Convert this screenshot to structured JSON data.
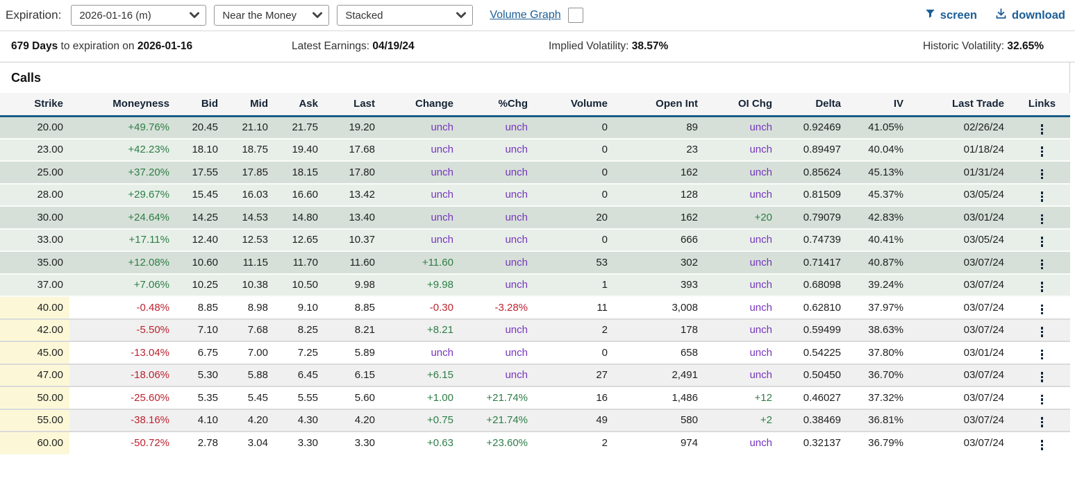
{
  "toolbar": {
    "expiration_label": "Expiration:",
    "expiration_value": "2026-01-16 (m)",
    "moneyness_filter_value": "Near the Money",
    "view_mode_value": "Stacked",
    "volume_graph_label": "Volume Graph",
    "volume_graph_checked": false,
    "screen_label": "screen",
    "download_label": "download"
  },
  "info_bar": {
    "days_value": "679 Days",
    "days_text": " to expiration on ",
    "expiration_date": "2026-01-16",
    "earnings_label": "Latest Earnings: ",
    "earnings_value": "04/19/24",
    "implied_vol_label": "Implied Volatility: ",
    "implied_vol_value": "38.57%",
    "historic_vol_label": "Historic Volatility: ",
    "historic_vol_value": "32.65%"
  },
  "calls_section": {
    "title": "Calls"
  },
  "table": {
    "columns": [
      "Strike",
      "Moneyness",
      "Bid",
      "Mid",
      "Ask",
      "Last",
      "Change",
      "%Chg",
      "Volume",
      "Open Int",
      "OI Chg",
      "Delta",
      "IV",
      "Last Trade",
      "Links"
    ],
    "rows": [
      {
        "strike": "20.00",
        "moneyness": "+49.76%",
        "bid": "20.45",
        "mid": "21.10",
        "ask": "21.75",
        "last": "19.20",
        "change": "unch",
        "pchg": "unch",
        "volume": "0",
        "open_int": "89",
        "oi_chg": "unch",
        "delta": "0.92469",
        "iv": "41.05%",
        "last_trade": "02/26/24",
        "zone": "itm",
        "shade": "shade-a"
      },
      {
        "strike": "23.00",
        "moneyness": "+42.23%",
        "bid": "18.10",
        "mid": "18.75",
        "ask": "19.40",
        "last": "17.68",
        "change": "unch",
        "pchg": "unch",
        "volume": "0",
        "open_int": "23",
        "oi_chg": "unch",
        "delta": "0.89497",
        "iv": "40.04%",
        "last_trade": "01/18/24",
        "zone": "itm",
        "shade": "shade-b"
      },
      {
        "strike": "25.00",
        "moneyness": "+37.20%",
        "bid": "17.55",
        "mid": "17.85",
        "ask": "18.15",
        "last": "17.80",
        "change": "unch",
        "pchg": "unch",
        "volume": "0",
        "open_int": "162",
        "oi_chg": "unch",
        "delta": "0.85624",
        "iv": "45.13%",
        "last_trade": "01/31/24",
        "zone": "itm",
        "shade": "shade-a"
      },
      {
        "strike": "28.00",
        "moneyness": "+29.67%",
        "bid": "15.45",
        "mid": "16.03",
        "ask": "16.60",
        "last": "13.42",
        "change": "unch",
        "pchg": "unch",
        "volume": "0",
        "open_int": "128",
        "oi_chg": "unch",
        "delta": "0.81509",
        "iv": "45.37%",
        "last_trade": "03/05/24",
        "zone": "itm",
        "shade": "shade-b"
      },
      {
        "strike": "30.00",
        "moneyness": "+24.64%",
        "bid": "14.25",
        "mid": "14.53",
        "ask": "14.80",
        "last": "13.40",
        "change": "unch",
        "pchg": "unch",
        "volume": "20",
        "open_int": "162",
        "oi_chg": "+20",
        "delta": "0.79079",
        "iv": "42.83%",
        "last_trade": "03/01/24",
        "zone": "itm",
        "shade": "shade-a"
      },
      {
        "strike": "33.00",
        "moneyness": "+17.11%",
        "bid": "12.40",
        "mid": "12.53",
        "ask": "12.65",
        "last": "10.37",
        "change": "unch",
        "pchg": "unch",
        "volume": "0",
        "open_int": "666",
        "oi_chg": "unch",
        "delta": "0.74739",
        "iv": "40.41%",
        "last_trade": "03/05/24",
        "zone": "itm",
        "shade": "shade-b"
      },
      {
        "strike": "35.00",
        "moneyness": "+12.08%",
        "bid": "10.60",
        "mid": "11.15",
        "ask": "11.70",
        "last": "11.60",
        "change": "+11.60",
        "pchg": "unch",
        "volume": "53",
        "open_int": "302",
        "oi_chg": "unch",
        "delta": "0.71417",
        "iv": "40.87%",
        "last_trade": "03/07/24",
        "zone": "itm",
        "shade": "shade-a"
      },
      {
        "strike": "37.00",
        "moneyness": "+7.06%",
        "bid": "10.25",
        "mid": "10.38",
        "ask": "10.50",
        "last": "9.98",
        "change": "+9.98",
        "pchg": "unch",
        "volume": "1",
        "open_int": "393",
        "oi_chg": "unch",
        "delta": "0.68098",
        "iv": "39.24%",
        "last_trade": "03/07/24",
        "zone": "itm",
        "shade": "shade-b"
      },
      {
        "strike": "40.00",
        "moneyness": "-0.48%",
        "bid": "8.85",
        "mid": "8.98",
        "ask": "9.10",
        "last": "8.85",
        "change": "-0.30",
        "pchg": "-3.28%",
        "volume": "11",
        "open_int": "3,008",
        "oi_chg": "unch",
        "delta": "0.62810",
        "iv": "37.97%",
        "last_trade": "03/07/24",
        "zone": "otm",
        "shade": "shade-a"
      },
      {
        "strike": "42.00",
        "moneyness": "-5.50%",
        "bid": "7.10",
        "mid": "7.68",
        "ask": "8.25",
        "last": "8.21",
        "change": "+8.21",
        "pchg": "unch",
        "volume": "2",
        "open_int": "178",
        "oi_chg": "unch",
        "delta": "0.59499",
        "iv": "38.63%",
        "last_trade": "03/07/24",
        "zone": "otm",
        "shade": "shade-b"
      },
      {
        "strike": "45.00",
        "moneyness": "-13.04%",
        "bid": "6.75",
        "mid": "7.00",
        "ask": "7.25",
        "last": "5.89",
        "change": "unch",
        "pchg": "unch",
        "volume": "0",
        "open_int": "658",
        "oi_chg": "unch",
        "delta": "0.54225",
        "iv": "37.80%",
        "last_trade": "03/01/24",
        "zone": "otm",
        "shade": "shade-a"
      },
      {
        "strike": "47.00",
        "moneyness": "-18.06%",
        "bid": "5.30",
        "mid": "5.88",
        "ask": "6.45",
        "last": "6.15",
        "change": "+6.15",
        "pchg": "unch",
        "volume": "27",
        "open_int": "2,491",
        "oi_chg": "unch",
        "delta": "0.50450",
        "iv": "36.70%",
        "last_trade": "03/07/24",
        "zone": "otm",
        "shade": "shade-b"
      },
      {
        "strike": "50.00",
        "moneyness": "-25.60%",
        "bid": "5.35",
        "mid": "5.45",
        "ask": "5.55",
        "last": "5.60",
        "change": "+1.00",
        "pchg": "+21.74%",
        "volume": "16",
        "open_int": "1,486",
        "oi_chg": "+12",
        "delta": "0.46027",
        "iv": "37.32%",
        "last_trade": "03/07/24",
        "zone": "otm",
        "shade": "shade-a"
      },
      {
        "strike": "55.00",
        "moneyness": "-38.16%",
        "bid": "4.10",
        "mid": "4.20",
        "ask": "4.30",
        "last": "4.20",
        "change": "+0.75",
        "pchg": "+21.74%",
        "volume": "49",
        "open_int": "580",
        "oi_chg": "+2",
        "delta": "0.38469",
        "iv": "36.81%",
        "last_trade": "03/07/24",
        "zone": "otm",
        "shade": "shade-b"
      },
      {
        "strike": "60.00",
        "moneyness": "-50.72%",
        "bid": "2.78",
        "mid": "3.04",
        "ask": "3.30",
        "last": "3.30",
        "change": "+0.63",
        "pchg": "+23.60%",
        "volume": "2",
        "open_int": "974",
        "oi_chg": "unch",
        "delta": "0.32137",
        "iv": "36.79%",
        "last_trade": "03/07/24",
        "zone": "otm",
        "shade": "shade-a"
      }
    ]
  },
  "colors": {
    "accent_blue": "#1b5e97",
    "header_border_blue": "#1a5c86",
    "positive_green": "#2d7d46",
    "negative_red": "#bc2330",
    "unchanged_purple": "#7635bd",
    "itm_row_dark": "#d6e0d8",
    "itm_row_light": "#e7efe8",
    "otm_row_alt": "#f0f0f0",
    "otm_strike_yellow": "#fcf8d7"
  }
}
